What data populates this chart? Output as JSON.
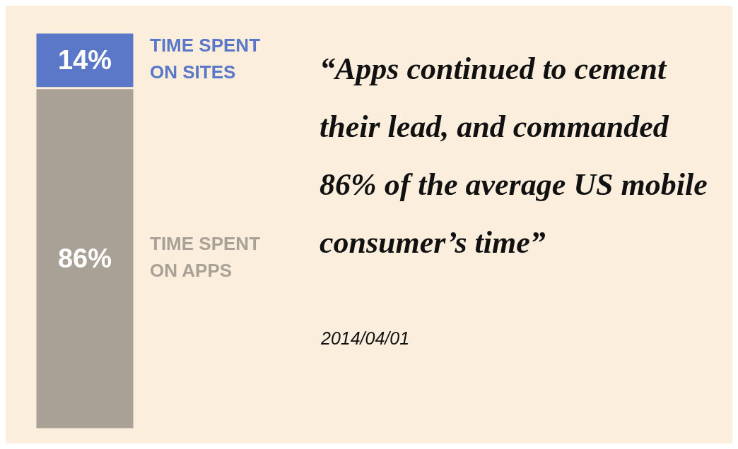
{
  "chart_data": {
    "type": "bar",
    "stacked": true,
    "categories": [
      null
    ],
    "series": [
      {
        "name": "TIME SPENT ON APPS",
        "color": "#aaa196",
        "values": [
          86
        ],
        "value_labels": [
          "86%"
        ]
      },
      {
        "name": "TIME SPENT ON SITES",
        "color": "#5b78c8",
        "values": [
          14
        ],
        "value_labels": [
          "14%"
        ]
      }
    ],
    "annotations": [
      "“Apps continued to cement their lead, and commanded 86% of the average US mobile consumer’s time”",
      "2014/04/01"
    ]
  }
}
